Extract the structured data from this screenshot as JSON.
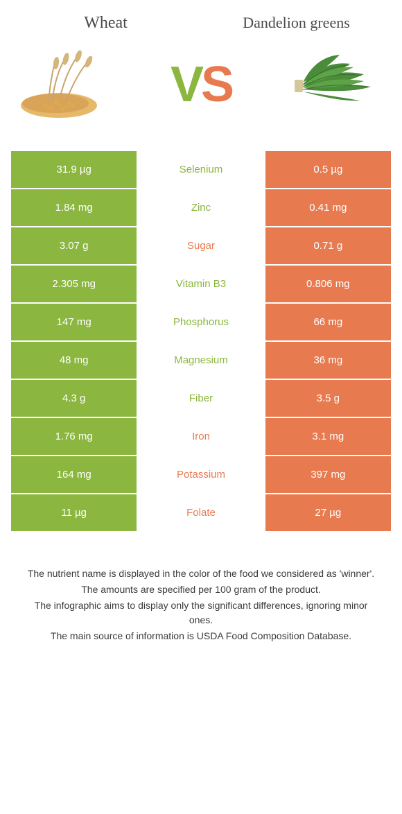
{
  "colors": {
    "left": "#8bb63f",
    "right": "#e87a4f",
    "text": "#4a4a4a",
    "white": "#ffffff"
  },
  "header": {
    "left_title": "Wheat",
    "right_title": "Dandelion greens",
    "vs_v": "V",
    "vs_s": "S"
  },
  "rows": [
    {
      "left": "31.9 µg",
      "label": "Selenium",
      "right": "0.5 µg",
      "winner": "green"
    },
    {
      "left": "1.84 mg",
      "label": "Zinc",
      "right": "0.41 mg",
      "winner": "green"
    },
    {
      "left": "3.07 g",
      "label": "Sugar",
      "right": "0.71 g",
      "winner": "orange"
    },
    {
      "left": "2.305 mg",
      "label": "Vitamin B3",
      "right": "0.806 mg",
      "winner": "green"
    },
    {
      "left": "147 mg",
      "label": "Phosphorus",
      "right": "66 mg",
      "winner": "green"
    },
    {
      "left": "48 mg",
      "label": "Magnesium",
      "right": "36 mg",
      "winner": "green"
    },
    {
      "left": "4.3 g",
      "label": "Fiber",
      "right": "3.5 g",
      "winner": "green"
    },
    {
      "left": "1.76 mg",
      "label": "Iron",
      "right": "3.1 mg",
      "winner": "orange"
    },
    {
      "left": "164 mg",
      "label": "Potassium",
      "right": "397 mg",
      "winner": "orange"
    },
    {
      "left": "11 µg",
      "label": "Folate",
      "right": "27 µg",
      "winner": "orange"
    }
  ],
  "footer": {
    "line1": "The nutrient name is displayed in the color of the food we considered as 'winner'.",
    "line2": "The amounts are specified per 100 gram of the product.",
    "line3": "The infographic aims to display only the significant differences, ignoring minor ones.",
    "line4": "The main source of information is USDA Food Composition Database."
  }
}
